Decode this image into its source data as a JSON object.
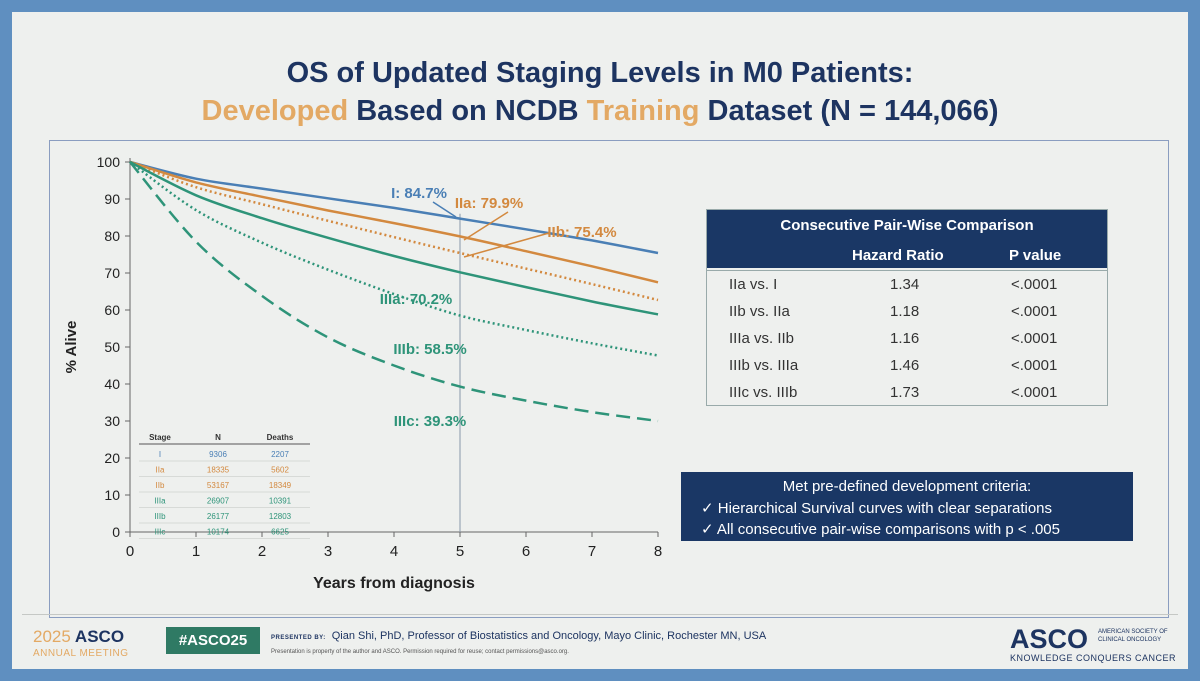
{
  "title": {
    "line1": "OS of Updated Staging Levels in M0 Patients:",
    "line2_w1": "Developed",
    "line2_w2": " Based on NCDB ",
    "line2_w3": "Training",
    "line2_w4": " Dataset (N = 144,066)"
  },
  "chart_data": {
    "type": "line",
    "title": "",
    "xlabel": "Years from diagnosis",
    "ylabel": "% Alive",
    "xlim": [
      0,
      8
    ],
    "ylim": [
      0,
      100
    ],
    "xticks": [
      0,
      1,
      2,
      3,
      4,
      5,
      6,
      7,
      8
    ],
    "yticks": [
      0,
      10,
      20,
      30,
      40,
      50,
      60,
      70,
      80,
      90,
      100
    ],
    "reference_x": 5,
    "x": [
      0,
      1,
      2,
      3,
      4,
      5,
      6,
      7,
      8
    ],
    "series": [
      {
        "name": "I",
        "label": "I: 84.7%",
        "color": "#4a7fb5",
        "dash": "solid",
        "values": [
          100,
          95.5,
          92.8,
          90.2,
          87.6,
          84.7,
          81.8,
          78.8,
          75.4
        ]
      },
      {
        "name": "IIa",
        "label": "IIa: 79.9%",
        "color": "#d3893f",
        "dash": "solid",
        "values": [
          100,
          94.5,
          90.6,
          86.9,
          83.5,
          79.9,
          75.9,
          71.8,
          67.5
        ]
      },
      {
        "name": "IIb",
        "label": "IIb: 75.4%",
        "color": "#d3893f",
        "dash": "dotted",
        "values": [
          100,
          93.2,
          88.6,
          84.1,
          79.7,
          75.4,
          71.2,
          67.0,
          62.7
        ]
      },
      {
        "name": "IIIa",
        "label": "IIIa: 70.2%",
        "color": "#2e9479",
        "dash": "solid",
        "values": [
          100,
          91.0,
          84.8,
          79.5,
          74.6,
          70.2,
          66.2,
          62.3,
          58.8
        ]
      },
      {
        "name": "IIIb",
        "label": "IIIb: 58.5%",
        "color": "#2e9479",
        "dash": "dotted",
        "values": [
          100,
          87.0,
          78.2,
          70.9,
          64.3,
          58.5,
          54.6,
          51.0,
          47.7
        ]
      },
      {
        "name": "IIIc",
        "label": "IIIc: 39.3%",
        "color": "#2e9479",
        "dash": "dashed",
        "values": [
          100,
          78.5,
          63.8,
          52.6,
          45.0,
          39.3,
          35.5,
          32.4,
          30.0
        ]
      }
    ],
    "inset_table": {
      "headers": [
        "Stage",
        "N",
        "Deaths"
      ],
      "rows": [
        {
          "stage": "I",
          "n": "9306",
          "deaths": "2207",
          "color": "#4a7fb5"
        },
        {
          "stage": "IIa",
          "n": "18335",
          "deaths": "5602",
          "color": "#d3893f"
        },
        {
          "stage": "IIb",
          "n": "53167",
          "deaths": "18349",
          "color": "#d3893f"
        },
        {
          "stage": "IIIa",
          "n": "26907",
          "deaths": "10391",
          "color": "#2e9479"
        },
        {
          "stage": "IIIb",
          "n": "26177",
          "deaths": "12803",
          "color": "#2e9479"
        },
        {
          "stage": "IIIc",
          "n": "10174",
          "deaths": "6625",
          "color": "#2e9479"
        }
      ]
    }
  },
  "pairwise": {
    "title": "Consecutive Pair-Wise Comparison",
    "col_hr": "Hazard Ratio",
    "col_p": "P value",
    "rows": [
      {
        "comparison": "IIa vs. I",
        "hr": "1.34",
        "p": "<.0001"
      },
      {
        "comparison": "IIb vs. IIa",
        "hr": "1.18",
        "p": "<.0001"
      },
      {
        "comparison": "IIIa vs. IIb",
        "hr": "1.16",
        "p": "<.0001"
      },
      {
        "comparison": "IIIb vs. IIIa",
        "hr": "1.46",
        "p": "<.0001"
      },
      {
        "comparison": "IIIc vs. IIIb",
        "hr": "1.73",
        "p": "<.0001"
      }
    ]
  },
  "criteria": {
    "title": "Met pre-defined development criteria:",
    "items": [
      "✓   Hierarchical Survival curves with clear separations",
      "✓   All consecutive pair-wise comparisons with p < .005"
    ]
  },
  "footer": {
    "year": "2025",
    "brand": "ASCO",
    "meeting": "ANNUAL MEETING",
    "hashtag": "#ASCO25",
    "presented_by_label": "PRESENTED BY:",
    "presenter": "Qian Shi, PhD, Professor of Biostatistics and Oncology, Mayo Clinic, Rochester MN, USA",
    "property_note": "Presentation is property of the author and ASCO. Permission required for reuse; contact permissions@asco.org.",
    "asco_right": "ASCO",
    "society": "AMERICAN SOCIETY OF CLINICAL ONCOLOGY",
    "tagline": "KNOWLEDGE CONQUERS CANCER"
  }
}
